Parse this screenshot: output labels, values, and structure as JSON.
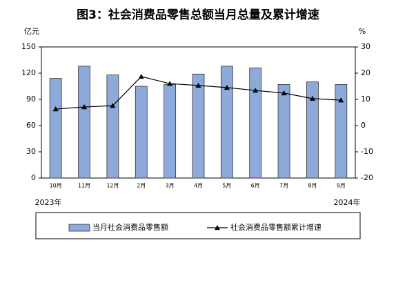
{
  "chart_data": {
    "type": "bar-line",
    "title": "图3：社会消费品零售总额当月总量及累计增速",
    "y_unit": "亿元",
    "y2_unit": "%",
    "categories": [
      "10月",
      "11月",
      "12月",
      "2月",
      "3月",
      "4月",
      "5月",
      "6月",
      "7月",
      "8月",
      "9月"
    ],
    "year_labels": [
      "2023年",
      "2024年"
    ],
    "series": [
      {
        "name": "当月社会消费品零售额",
        "type": "bar",
        "color": "#8eaadb",
        "values": [
          114,
          128,
          118,
          105,
          107,
          119,
          128,
          126,
          107,
          110,
          107
        ]
      },
      {
        "name": "社会消费品零售额累计增速",
        "type": "line",
        "axis": "y2",
        "color": "#000000",
        "values": [
          6.3,
          7.1,
          7.6,
          18.7,
          16.0,
          15.3,
          14.5,
          13.4,
          12.4,
          10.3,
          9.7
        ]
      }
    ],
    "ylim": [
      0,
      150
    ],
    "yticks": [
      0,
      30,
      60,
      90,
      120,
      150
    ],
    "y2lim": [
      -20,
      30
    ],
    "y2ticks": [
      -20,
      -10,
      0,
      10,
      20,
      30
    ]
  }
}
